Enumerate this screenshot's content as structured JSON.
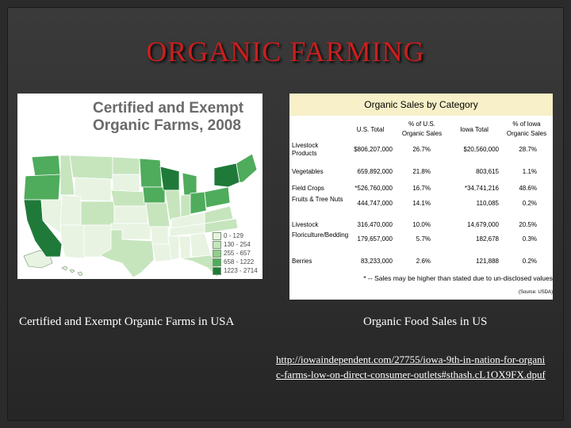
{
  "slide": {
    "title": "ORGANIC FARMING"
  },
  "map": {
    "title_line1": "Certified and Exempt",
    "title_line2": "Organic Farms, 2008",
    "legend": [
      {
        "label": "0 - 129",
        "color": "#e8f3e2"
      },
      {
        "label": "130 - 254",
        "color": "#c6e5bd"
      },
      {
        "label": "255 - 657",
        "color": "#8fce8a"
      },
      {
        "label": "658 - 1222",
        "color": "#4fac5c"
      },
      {
        "label": "1223 - 2714",
        "color": "#1f7a3a"
      }
    ],
    "caption": "Certified and Exempt Organic Farms in USA"
  },
  "sales_table": {
    "title": "Organic Sales by Category",
    "headers": [
      "U.S. Total",
      "% of U.S. Organic Sales",
      "Iowa Total",
      "% of Iowa Organic Sales"
    ],
    "rows": [
      {
        "category": "Livestock Products",
        "us_total": "$806,207,000",
        "us_pct": "26.7%",
        "iowa_total": "$20,560,000",
        "iowa_pct": "28.7%"
      },
      {
        "category": "Vegetables",
        "us_total": "659,892,000",
        "us_pct": "21.8%",
        "iowa_total": "803,615",
        "iowa_pct": "1.1%"
      },
      {
        "category": "Field Crops",
        "us_total": "*526,760,000",
        "us_pct": "16.7%",
        "iowa_total": "*34,741,216",
        "iowa_pct": "48.6%"
      },
      {
        "category": "Fruits & Tree Nuts",
        "us_total": "444,747,000",
        "us_pct": "14.1%",
        "iowa_total": "110,085",
        "iowa_pct": "0.2%"
      },
      {
        "category": "Livestock",
        "us_total": "316,470,000",
        "us_pct": "10.0%",
        "iowa_total": "14,679,000",
        "iowa_pct": "20.5%"
      },
      {
        "category": "Floriculture/Bedding",
        "us_total": "179,657,000",
        "us_pct": "5.7%",
        "iowa_total": "182,678",
        "iowa_pct": "0.3%"
      },
      {
        "category": "Berries",
        "us_total": "83,233,000",
        "us_pct": "2.6%",
        "iowa_total": "121,888",
        "iowa_pct": "0.2%"
      }
    ],
    "footnote": "* -- Sales may be higher than stated due to un-disclosed values",
    "source": "(Source: USDA)",
    "caption": "Organic Food Sales in US"
  },
  "link": {
    "url": "http://iowaindependent.com/27755/iowa-9th-in-nation-for-organic-farms-low-on-direct-consumer-outlets#sthash.cL1OX9FX.dpuf"
  }
}
